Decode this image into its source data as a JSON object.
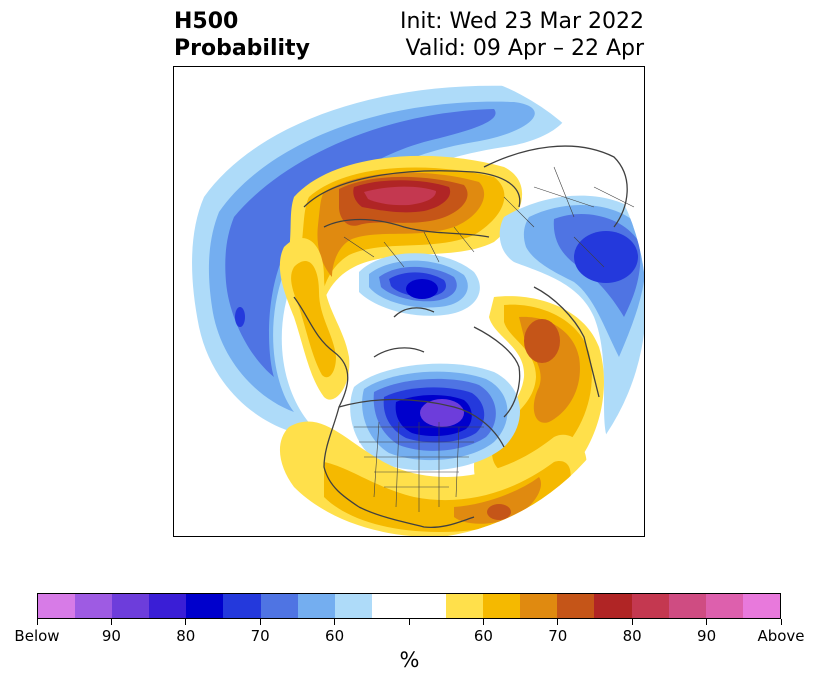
{
  "title": {
    "left_line1": "H500",
    "left_line2": "Probability",
    "init": "Init: Wed 23 Mar 2022",
    "valid": "Valid: 09 Apr – 22 Apr"
  },
  "map": {
    "projection": "north-polar-stereographic",
    "features": [
      "coastlines",
      "country-borders",
      "state-borders"
    ]
  },
  "colorbar": {
    "unit": "%",
    "segments": [
      "#d77be7",
      "#9e5be3",
      "#6d3ddb",
      "#3a1ed6",
      "#0000cc",
      "#2439dc",
      "#4f74e3",
      "#74aef0",
      "#aedbf9",
      "#ffffff",
      "#ffffff",
      "#ffe04b",
      "#f5b900",
      "#e08a10",
      "#c55518",
      "#b02525",
      "#c43850",
      "#cf4c82",
      "#dd60ad",
      "#e879dc"
    ],
    "tick_labels": [
      "Below",
      "90",
      "80",
      "70",
      "60",
      "",
      "60",
      "70",
      "80",
      "90",
      "Above"
    ]
  }
}
